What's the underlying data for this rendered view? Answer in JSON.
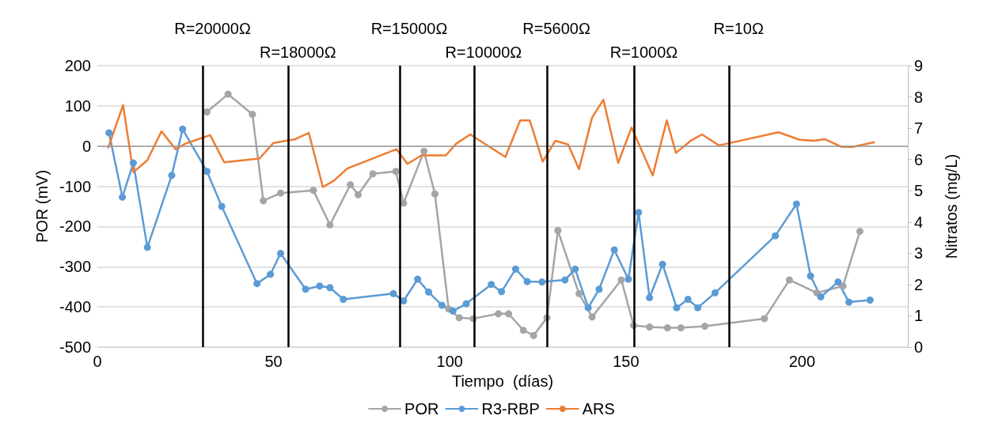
{
  "chart_data": {
    "type": "line",
    "xlabel": "Tiempo  (días)",
    "ylabel": "POR (mV)",
    "y2label": "Nitratos (mg/L)",
    "xlim": [
      0,
      230
    ],
    "xticks": [
      0,
      50,
      100,
      150,
      200
    ],
    "ylim": [
      -500,
      200
    ],
    "yticks": [
      -500,
      -400,
      -300,
      -200,
      -100,
      0,
      100,
      200
    ],
    "y2lim": [
      0,
      9
    ],
    "y2ticks": [
      0,
      1,
      2,
      3,
      4,
      5,
      6,
      7,
      8,
      9
    ],
    "grid": "y",
    "legend": "bottom",
    "line_style": "solid",
    "series": [
      {
        "name": "POR",
        "color": "#a5a5a5",
        "marker": "circle",
        "x": [
          31.1,
          37.1,
          44,
          47.1,
          52,
          61.3,
          66,
          71.8,
          74,
          78.2,
          84.7,
          86.9,
          92.7,
          95.8,
          99.7,
          102.7,
          106.7,
          113.8,
          116.7,
          120.9,
          123.8,
          127.6,
          130.7,
          136.7,
          140.4,
          148.7,
          152.2,
          156.7,
          161.8,
          165.6,
          172.4,
          189.3,
          196.4,
          204.2,
          211.6,
          216.4
        ],
        "values": [
          85,
          129,
          79,
          -136,
          -117,
          -110,
          -196,
          -96,
          -121,
          -69,
          -63,
          -142,
          -13,
          -119,
          -405,
          -427,
          -429,
          -417,
          -417,
          -458,
          -471,
          -427,
          -210,
          -367,
          -425,
          -333,
          -446,
          -450,
          -452,
          -452,
          -448,
          -429,
          -333,
          -365,
          -348,
          -212
        ]
      },
      {
        "name": "R3-RBP",
        "color": "#5b9bd5",
        "marker": "circle",
        "x": [
          3.3,
          7.1,
          10.2,
          14.2,
          21.1,
          24.2,
          31.1,
          35.3,
          45.3,
          49.1,
          52,
          59.1,
          63.1,
          66,
          69.8,
          84,
          86.9,
          90.9,
          94,
          97.8,
          100.9,
          104.7,
          111.8,
          114.7,
          118.7,
          122,
          126.2,
          132.7,
          135.6,
          139.3,
          142.4,
          146.7,
          150.7,
          153.6,
          156.7,
          160.4,
          164.4,
          167.6,
          170.4,
          175.3,
          192.4,
          198.4,
          202.4,
          205.3,
          210.2,
          213.3,
          219.3
        ],
        "values": [
          33,
          -127,
          -42,
          -252,
          -73,
          42,
          -63,
          -150,
          -342,
          -319,
          -267,
          -356,
          -348,
          -352,
          -381,
          -367,
          -385,
          -331,
          -363,
          -396,
          -410,
          -392,
          -344,
          -362,
          -306,
          -337,
          -338,
          -333,
          -306,
          -402,
          -356,
          -258,
          -331,
          -165,
          -377,
          -294,
          -402,
          -381,
          -402,
          -365,
          -223,
          -144,
          -323,
          -375,
          -338,
          -388,
          -383
        ]
      },
      {
        "name": "ARS",
        "color": "#ed7d31",
        "marker": "none",
        "axis": "y2",
        "x": [
          3.1,
          7.3,
          10.2,
          14.2,
          18.2,
          22.2,
          24.9,
          32,
          36,
          46,
          50,
          56.2,
          60,
          64,
          67.1,
          70.9,
          84.9,
          88,
          92,
          98.9,
          101.8,
          105.8,
          115.8,
          120,
          122.7,
          126.4,
          130,
          133.6,
          136.7,
          140.4,
          143.6,
          147.8,
          151.6,
          157.6,
          161.6,
          164.2,
          168.4,
          171.6,
          176.4,
          193.3,
          199.3,
          203.3,
          206.4,
          211.3,
          214.4,
          220.4
        ],
        "values": [
          6.38,
          7.74,
          5.59,
          5.98,
          6.9,
          6.33,
          6.5,
          6.78,
          5.91,
          6.03,
          6.53,
          6.65,
          6.85,
          5.12,
          5.32,
          5.71,
          6.33,
          5.86,
          6.13,
          6.13,
          6.5,
          6.8,
          6.08,
          7.25,
          7.25,
          5.93,
          6.6,
          6.48,
          5.69,
          7.34,
          7.91,
          5.89,
          7.02,
          5.49,
          7.25,
          6.21,
          6.6,
          6.8,
          6.45,
          6.87,
          6.63,
          6.6,
          6.65,
          6.4,
          6.4,
          6.55
        ]
      }
    ],
    "ref_lines": [
      {
        "axis": "y",
        "value": 0,
        "color": "#999999"
      },
      {
        "axis": "x",
        "value": 30,
        "color": "#000000"
      },
      {
        "axis": "x",
        "value": 54.2,
        "color": "#000000"
      },
      {
        "axis": "x",
        "value": 85.8,
        "color": "#000000"
      },
      {
        "axis": "x",
        "value": 106.9,
        "color": "#000000"
      },
      {
        "axis": "x",
        "value": 127.6,
        "color": "#000000"
      },
      {
        "axis": "x",
        "value": 152.4,
        "color": "#000000"
      },
      {
        "axis": "x",
        "value": 179.3,
        "color": "#000000"
      }
    ],
    "annotations": [
      "R=20000Ω",
      "R=18000Ω",
      "R=15000Ω",
      "R=10000Ω",
      "R=5600Ω",
      "R=1000Ω",
      "R=10Ω"
    ]
  }
}
